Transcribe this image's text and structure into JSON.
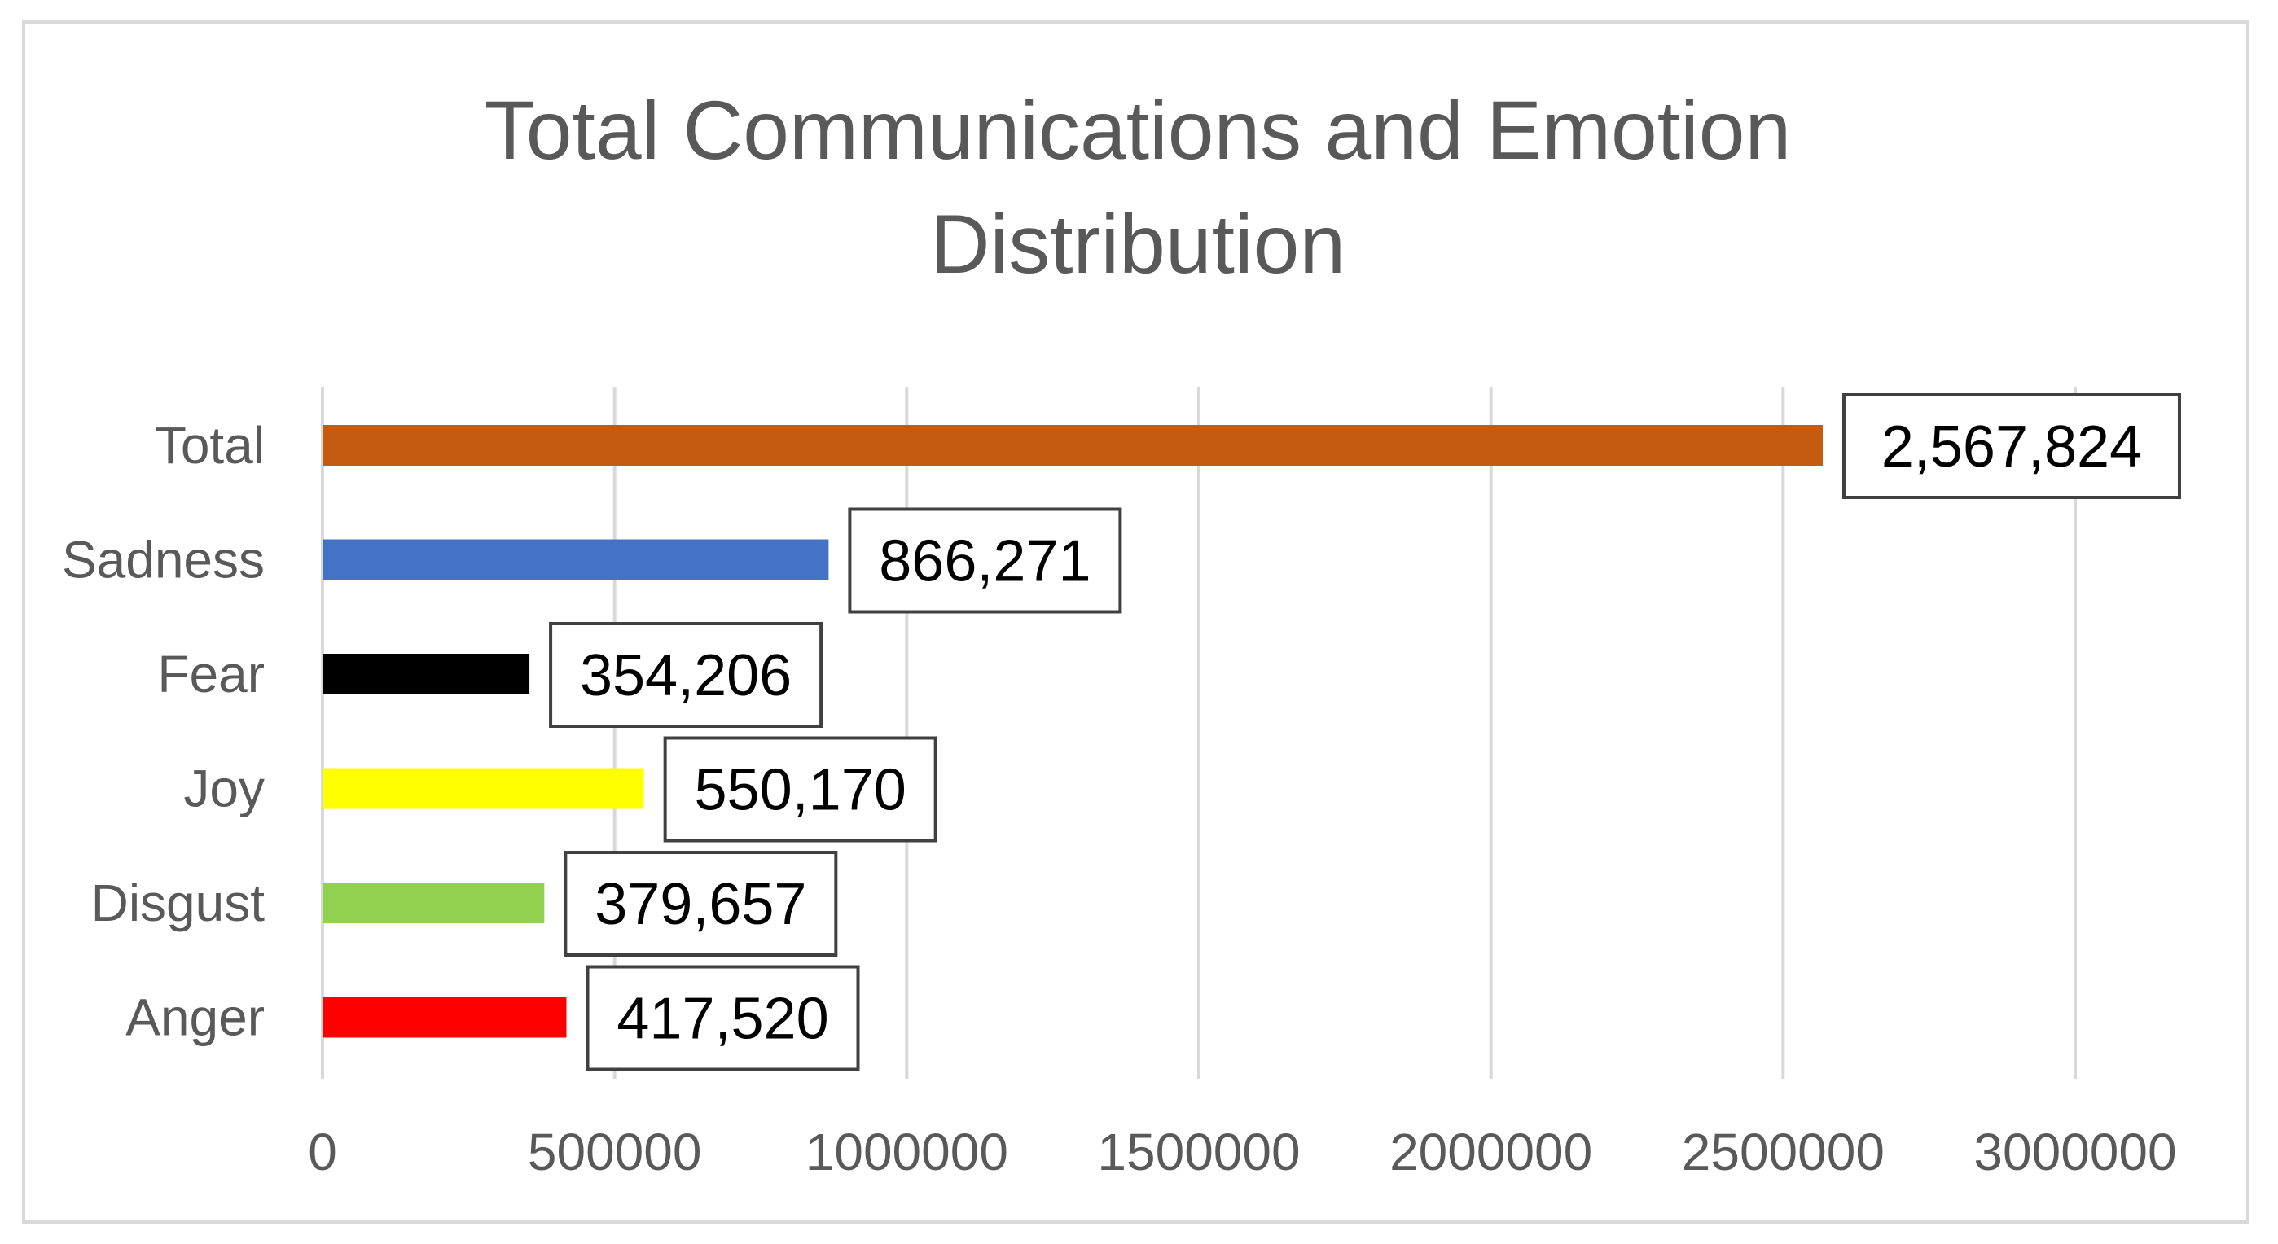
{
  "chart_data": {
    "type": "bar",
    "orientation": "horizontal",
    "title": "Total Communications and Emotion Distribution",
    "title_lines": [
      "Total Communications and Emotion",
      "Distribution"
    ],
    "categories": [
      "Total",
      "Sadness",
      "Fear",
      "Joy",
      "Disgust",
      "Anger"
    ],
    "values": [
      2567824,
      866271,
      354206,
      550170,
      379657,
      417520
    ],
    "data_labels": [
      "2,567,824",
      "866,271",
      "354,206",
      "550,170",
      "379,657",
      "417,520"
    ],
    "colors": [
      "#c55a11",
      "#4472c4",
      "#000000",
      "#ffff00",
      "#92d050",
      "#ff0000"
    ],
    "xlim": [
      0,
      3000000
    ],
    "xticks": [
      0,
      500000,
      1000000,
      1500000,
      2000000,
      2500000,
      3000000
    ],
    "xtick_labels": [
      "0",
      "500000",
      "1000000",
      "1500000",
      "2000000",
      "2500000",
      "3000000"
    ],
    "xlabel": "",
    "ylabel": "",
    "grid": true,
    "legend": "none"
  }
}
